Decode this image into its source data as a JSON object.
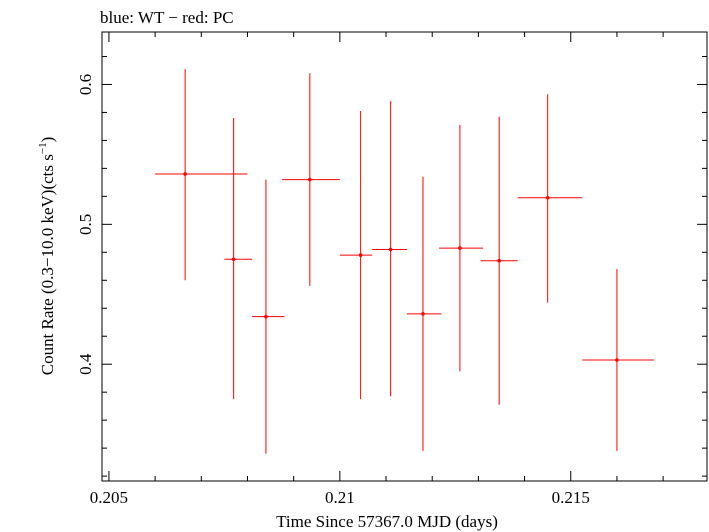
{
  "chart_data": {
    "type": "scatter",
    "title": "blue: WT − red: PC",
    "xlabel": "Time Since 57367.0 MJD (days)",
    "ylabel_main": "Count Rate (0.3−10.0 keV)(cts s",
    "ylabel_sup": "−1",
    "ylabel_end": ")",
    "xlim": [
      0.20485,
      0.21795
    ],
    "ylim": [
      0.3165,
      0.6375
    ],
    "x_ticks": [
      {
        "value": 0.205,
        "label": "0.205"
      },
      {
        "value": 0.21,
        "label": "0.21"
      },
      {
        "value": 0.215,
        "label": "0.215"
      }
    ],
    "y_ticks": [
      {
        "value": 0.4,
        "label": "0.4"
      },
      {
        "value": 0.5,
        "label": "0.5"
      },
      {
        "value": 0.6,
        "label": "0.6"
      }
    ],
    "x_minor_step": 0.001,
    "y_minor_step": 0.02,
    "grid": false,
    "series": [
      {
        "color": "#ff0000",
        "points": [
          {
            "x": 0.20665,
            "y": 0.536,
            "xerr": [
              0.00065,
              0.00135
            ],
            "yerr": [
              0.076,
              0.075
            ]
          },
          {
            "x": 0.2077,
            "y": 0.475,
            "xerr": [
              0.0002,
              0.0004
            ],
            "yerr": [
              0.1,
              0.101
            ]
          },
          {
            "x": 0.2084,
            "y": 0.434,
            "xerr": [
              0.0003,
              0.0004
            ],
            "yerr": [
              0.098,
              0.098
            ]
          },
          {
            "x": 0.20935,
            "y": 0.532,
            "xerr": [
              0.0006,
              0.00065
            ],
            "yerr": [
              0.076,
              0.076
            ]
          },
          {
            "x": 0.21045,
            "y": 0.478,
            "xerr": [
              0.00045,
              0.00025
            ],
            "yerr": [
              0.103,
              0.103
            ]
          },
          {
            "x": 0.2111,
            "y": 0.482,
            "xerr": [
              0.0004,
              0.00035
            ],
            "yerr": [
              0.105,
              0.106
            ]
          },
          {
            "x": 0.2118,
            "y": 0.436,
            "xerr": [
              0.00035,
              0.0004
            ],
            "yerr": [
              0.098,
              0.098
            ]
          },
          {
            "x": 0.2126,
            "y": 0.483,
            "xerr": [
              0.00045,
              0.0005
            ],
            "yerr": [
              0.088,
              0.088
            ]
          },
          {
            "x": 0.21345,
            "y": 0.474,
            "xerr": [
              0.0004,
              0.0004
            ],
            "yerr": [
              0.103,
              0.103
            ]
          },
          {
            "x": 0.2145,
            "y": 0.519,
            "xerr": [
              0.00065,
              0.00075
            ],
            "yerr": [
              0.075,
              0.074
            ]
          },
          {
            "x": 0.216,
            "y": 0.403,
            "xerr": [
              0.00075,
              0.0008
            ],
            "yerr": [
              0.065,
              0.065
            ]
          }
        ]
      }
    ]
  }
}
